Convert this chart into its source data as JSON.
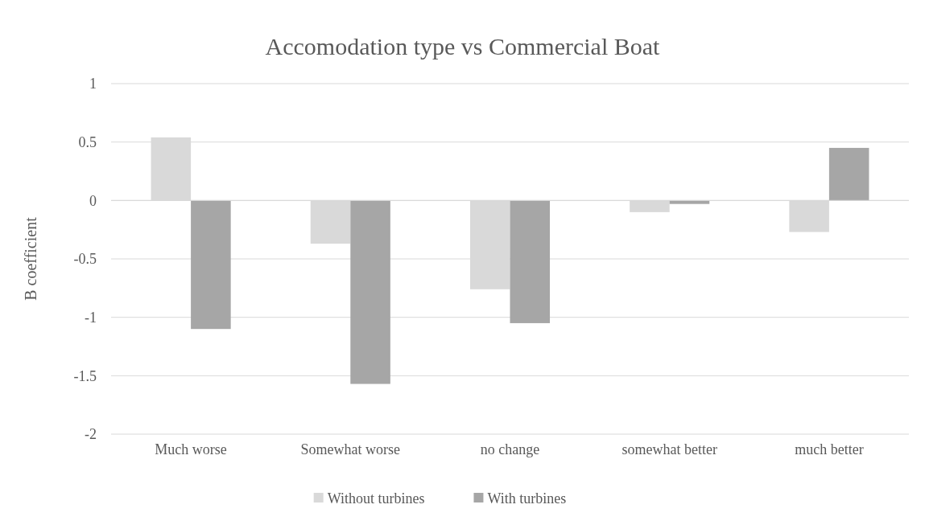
{
  "chart_data": {
    "type": "bar",
    "title": "Accomodation type vs Commercial Boat",
    "ylabel": "B coefficient",
    "categories": [
      "Much worse",
      "Somewhat worse",
      "no change",
      "somewhat better",
      "much better"
    ],
    "series": [
      {
        "name": "Without turbines",
        "color": "#d9d9d9",
        "values": [
          0.54,
          -0.37,
          -0.76,
          -0.1,
          -0.27
        ]
      },
      {
        "name": "With turbines",
        "color": "#a6a6a6",
        "values": [
          -1.1,
          -1.57,
          -1.05,
          -0.03,
          0.45
        ]
      }
    ],
    "ylim": [
      -2,
      1
    ],
    "yticks": [
      -2,
      -1.5,
      -1,
      -0.5,
      0,
      0.5,
      1
    ],
    "grid": "y",
    "legend": "bottom"
  }
}
